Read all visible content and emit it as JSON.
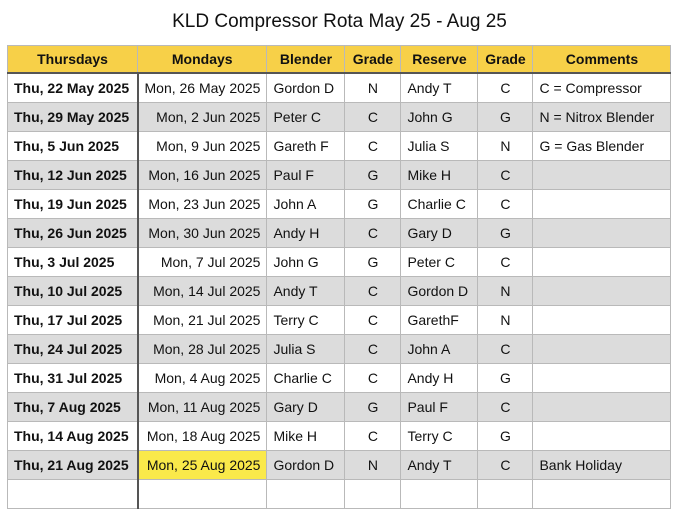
{
  "title": "KLD Compressor Rota May 25 - Aug 25",
  "columns": [
    "Thursdays",
    "Mondays",
    "Blender",
    "Grade",
    "Reserve",
    "Grade",
    "Comments"
  ],
  "rows": [
    {
      "thursday": "Thu, 22 May 2025",
      "monday": "Mon, 26 May 2025",
      "blender": "Gordon D",
      "grade1": "N",
      "reserve": "Andy T",
      "grade2": "C",
      "comment": "C = Compressor"
    },
    {
      "thursday": "Thu, 29 May 2025",
      "monday": "Mon, 2 Jun 2025",
      "blender": "Peter C",
      "grade1": "C",
      "reserve": "John G",
      "grade2": "G",
      "comment": "N = Nitrox Blender"
    },
    {
      "thursday": "Thu, 5 Jun 2025",
      "monday": "Mon, 9 Jun 2025",
      "blender": "Gareth F",
      "grade1": "C",
      "reserve": "Julia S",
      "grade2": "N",
      "comment": "G = Gas Blender"
    },
    {
      "thursday": "Thu, 12 Jun 2025",
      "monday": "Mon, 16 Jun 2025",
      "blender": "Paul F",
      "grade1": "G",
      "reserve": "Mike H",
      "grade2": "C",
      "comment": ""
    },
    {
      "thursday": "Thu, 19 Jun 2025",
      "monday": "Mon, 23 Jun 2025",
      "blender": "John A",
      "grade1": "G",
      "reserve": "Charlie C",
      "grade2": "C",
      "comment": ""
    },
    {
      "thursday": "Thu, 26 Jun 2025",
      "monday": "Mon, 30 Jun 2025",
      "blender": "Andy H",
      "grade1": "C",
      "reserve": "Gary D",
      "grade2": "G",
      "comment": ""
    },
    {
      "thursday": "Thu, 3 Jul 2025",
      "monday": "Mon, 7 Jul 2025",
      "blender": "John G",
      "grade1": "G",
      "reserve": "Peter C",
      "grade2": "C",
      "comment": ""
    },
    {
      "thursday": "Thu, 10 Jul 2025",
      "monday": "Mon, 14 Jul 2025",
      "blender": "Andy T",
      "grade1": "C",
      "reserve": "Gordon D",
      "grade2": "N",
      "comment": ""
    },
    {
      "thursday": "Thu, 17 Jul 2025",
      "monday": "Mon, 21 Jul 2025",
      "blender": "Terry C",
      "grade1": "C",
      "reserve": "GarethF",
      "grade2": "N",
      "comment": ""
    },
    {
      "thursday": "Thu, 24 Jul 2025",
      "monday": "Mon, 28 Jul 2025",
      "blender": "Julia S",
      "grade1": "C",
      "reserve": "John A",
      "grade2": "C",
      "comment": ""
    },
    {
      "thursday": "Thu, 31 Jul 2025",
      "monday": "Mon, 4 Aug 2025",
      "blender": "Charlie C",
      "grade1": "C",
      "reserve": "Andy H",
      "grade2": "G",
      "comment": ""
    },
    {
      "thursday": "Thu, 7 Aug 2025",
      "monday": "Mon, 11 Aug 2025",
      "blender": "Gary D",
      "grade1": "G",
      "reserve": "Paul F",
      "grade2": "C",
      "comment": ""
    },
    {
      "thursday": "Thu, 14 Aug 2025",
      "monday": "Mon, 18 Aug 2025",
      "blender": "Mike H",
      "grade1": "C",
      "reserve": "Terry C",
      "grade2": "G",
      "comment": ""
    },
    {
      "thursday": "Thu, 21 Aug 2025",
      "monday": "Mon, 25 Aug 2025",
      "blender": "Gordon D",
      "grade1": "N",
      "reserve": "Andy T",
      "grade2": "C",
      "comment": "Bank Holiday",
      "monday_highlight": true
    }
  ],
  "colors": {
    "header_bg": "#f7d048",
    "alt_row_bg": "#dcdcdc",
    "highlight_bg": "#fae94a"
  }
}
